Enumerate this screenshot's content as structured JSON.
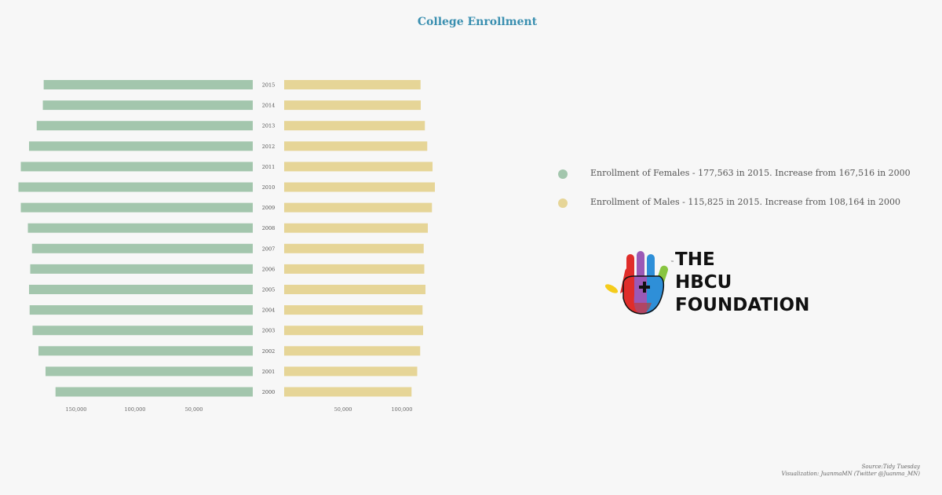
{
  "chart_data": {
    "type": "bar",
    "title": "College Enrollment",
    "orientation": "horizontal-diverging",
    "categories": [
      "2015",
      "2014",
      "2013",
      "2012",
      "2011",
      "2010",
      "2009",
      "2008",
      "2007",
      "2006",
      "2005",
      "2004",
      "2003",
      "2002",
      "2001",
      "2000"
    ],
    "series": [
      {
        "name": "Enrollment of Females",
        "side": "left",
        "color": "#a3c6ad",
        "values": [
          177563,
          178300,
          183500,
          190000,
          197000,
          199000,
          197000,
          191000,
          187500,
          189000,
          190000,
          189500,
          187000,
          182000,
          176000,
          167516
        ]
      },
      {
        "name": "Enrollment of Males",
        "side": "right",
        "color": "#e6d597",
        "values": [
          115825,
          116000,
          119500,
          121500,
          126000,
          128000,
          125500,
          122000,
          118500,
          119000,
          120000,
          117500,
          118000,
          115500,
          113000,
          108164
        ]
      }
    ],
    "x_ticks_left": [
      "150,000",
      "100,000",
      "50,000"
    ],
    "x_ticks_right": [
      "50,000",
      "100,000"
    ],
    "x_tick_values_left": [
      150000,
      100000,
      50000
    ],
    "x_tick_values_right": [
      50000,
      100000
    ],
    "grid": false,
    "legend_position": "right"
  },
  "legend": [
    {
      "text": "Enrollment of Females - 177,563 in 2015. Increase from 167,516 in 2000",
      "color": "#a3c6ad"
    },
    {
      "text": "Enrollment of Males - 115,825 in 2015. Increase from 108,164 in 2000",
      "color": "#e6d597"
    }
  ],
  "logo": {
    "icon": "multicolor-handprint-plus-icon",
    "lines": [
      "THE",
      "HBCU",
      "FOUNDATION"
    ],
    "tm": "™"
  },
  "credits": {
    "source": "Source:Tidy Tuesday",
    "visualization": "Visualization: JuanmaMN (Twitter @Juanma_MN)"
  }
}
